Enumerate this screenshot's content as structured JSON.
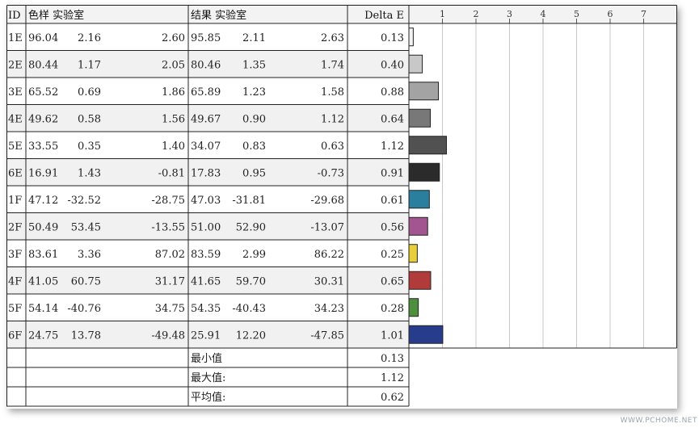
{
  "headers": {
    "id": "ID",
    "sample": "色样 实验室",
    "result": "结果 实验室",
    "delta": "Delta E"
  },
  "rows": [
    {
      "id": "1E",
      "sample": [
        "96.04",
        "2.16",
        "2.60"
      ],
      "result": [
        "95.85",
        "2.11",
        "2.63"
      ],
      "delta": "0.13",
      "color": "#f2f2f2"
    },
    {
      "id": "2E",
      "sample": [
        "80.44",
        "1.17",
        "2.05"
      ],
      "result": [
        "80.46",
        "1.35",
        "1.74"
      ],
      "delta": "0.40",
      "color": "#c8c8c8"
    },
    {
      "id": "3E",
      "sample": [
        "65.52",
        "0.69",
        "1.86"
      ],
      "result": [
        "65.89",
        "1.23",
        "1.58"
      ],
      "delta": "0.88",
      "color": "#a3a3a3"
    },
    {
      "id": "4E",
      "sample": [
        "49.62",
        "0.58",
        "1.56"
      ],
      "result": [
        "49.67",
        "0.90",
        "1.12"
      ],
      "delta": "0.64",
      "color": "#787878"
    },
    {
      "id": "5E",
      "sample": [
        "33.55",
        "0.35",
        "1.40"
      ],
      "result": [
        "34.07",
        "0.83",
        "0.63"
      ],
      "delta": "1.12",
      "color": "#515151"
    },
    {
      "id": "6E",
      "sample": [
        "16.91",
        "1.43",
        "-0.81"
      ],
      "result": [
        "17.83",
        "0.95",
        "-0.73"
      ],
      "delta": "0.91",
      "color": "#2b2b2b"
    },
    {
      "id": "1F",
      "sample": [
        "47.12",
        "-32.52",
        "-28.75"
      ],
      "result": [
        "47.03",
        "-31.81",
        "-29.68"
      ],
      "delta": "0.61",
      "color": "#2a7f9e"
    },
    {
      "id": "2F",
      "sample": [
        "50.49",
        "53.45",
        "-13.55"
      ],
      "result": [
        "51.00",
        "52.90",
        "-13.07"
      ],
      "delta": "0.56",
      "color": "#a2558f"
    },
    {
      "id": "3F",
      "sample": [
        "83.61",
        "3.36",
        "87.02"
      ],
      "result": [
        "83.59",
        "2.99",
        "86.22"
      ],
      "delta": "0.25",
      "color": "#e8cf3a"
    },
    {
      "id": "4F",
      "sample": [
        "41.05",
        "60.75",
        "31.17"
      ],
      "result": [
        "41.65",
        "59.70",
        "30.31"
      ],
      "delta": "0.65",
      "color": "#b13b3b"
    },
    {
      "id": "5F",
      "sample": [
        "54.14",
        "-40.76",
        "34.75"
      ],
      "result": [
        "54.35",
        "-40.43",
        "34.23"
      ],
      "delta": "0.28",
      "color": "#4d8f3c"
    },
    {
      "id": "6F",
      "sample": [
        "24.75",
        "13.78",
        "-49.48"
      ],
      "result": [
        "25.91",
        "12.20",
        "-47.85"
      ],
      "delta": "1.01",
      "color": "#283c8c"
    }
  ],
  "summary": [
    {
      "label": "最小值",
      "value": "0.13"
    },
    {
      "label": "最大值:",
      "value": "1.12"
    },
    {
      "label": "平均值:",
      "value": "0.62"
    }
  ],
  "chart_data": {
    "type": "bar",
    "orientation": "horizontal",
    "categories": [
      "1E",
      "2E",
      "3E",
      "4E",
      "5E",
      "6E",
      "1F",
      "2F",
      "3F",
      "4F",
      "5F",
      "6F"
    ],
    "values": [
      0.13,
      0.4,
      0.88,
      0.64,
      1.12,
      0.91,
      0.61,
      0.56,
      0.25,
      0.65,
      0.28,
      1.01
    ],
    "xlim": [
      0,
      8
    ],
    "xticks": [
      "1",
      "2",
      "3",
      "4",
      "5",
      "6",
      "7"
    ],
    "grid": true
  },
  "watermark": "WWW.PCHOME.NET"
}
